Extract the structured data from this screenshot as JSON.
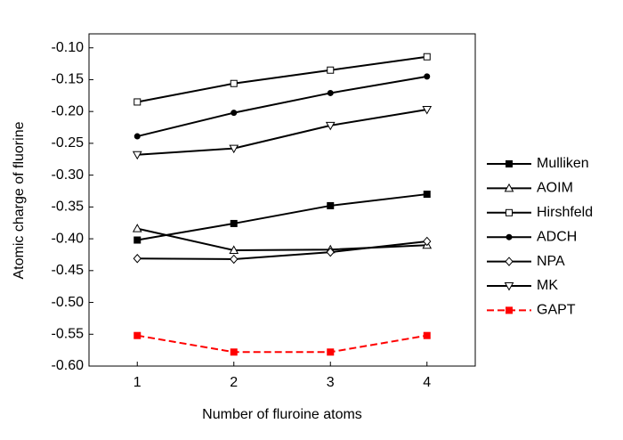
{
  "chart_data": {
    "type": "line",
    "x_label": "Number of fluroine atoms",
    "y_label": "Atomic charge of fluorine",
    "x": [
      1,
      2,
      3,
      4
    ],
    "xlim": [
      0.5,
      4.5
    ],
    "xticks": [
      1,
      2,
      3,
      4
    ],
    "ylim": [
      -0.6,
      -0.078
    ],
    "yticks": [
      {
        "value": -0.6,
        "label": "-0.60"
      },
      {
        "value": -0.55,
        "label": "-0.55"
      },
      {
        "value": -0.5,
        "label": "-0.50"
      },
      {
        "value": -0.45,
        "label": "-0.45"
      },
      {
        "value": -0.4,
        "label": "-0.40"
      },
      {
        "value": -0.35,
        "label": "-0.35"
      },
      {
        "value": -0.3,
        "label": "-0.30"
      },
      {
        "value": -0.25,
        "label": "-0.25"
      },
      {
        "value": -0.2,
        "label": "-0.20"
      },
      {
        "value": -0.15,
        "label": "-0.15"
      },
      {
        "value": -0.1,
        "label": "-0.10"
      }
    ],
    "grid": false,
    "legend": "right",
    "series": [
      {
        "name": "Mulliken",
        "color": "#000000",
        "marker": "square-filled",
        "values": [
          -0.402,
          -0.376,
          -0.348,
          -0.33
        ]
      },
      {
        "name": "AOIM",
        "color": "#000000",
        "marker": "triangle-up-open",
        "values": [
          -0.384,
          -0.418,
          -0.417,
          -0.41
        ]
      },
      {
        "name": "Hirshfeld",
        "color": "#000000",
        "marker": "square-open",
        "values": [
          -0.185,
          -0.156,
          -0.135,
          -0.114
        ]
      },
      {
        "name": "ADCH",
        "color": "#000000",
        "marker": "circle-filled",
        "values": [
          -0.239,
          -0.202,
          -0.171,
          -0.145
        ]
      },
      {
        "name": "NPA",
        "color": "#000000",
        "marker": "diamond-open",
        "values": [
          -0.431,
          -0.432,
          -0.421,
          -0.404
        ]
      },
      {
        "name": "MK",
        "color": "#000000",
        "marker": "triangle-down-open",
        "values": [
          -0.268,
          -0.258,
          -0.222,
          -0.197
        ]
      },
      {
        "name": "GAPT",
        "color": "#ff0000",
        "marker": "square-filled",
        "dashed": true,
        "values": [
          -0.552,
          -0.578,
          -0.578,
          -0.552
        ]
      }
    ]
  }
}
